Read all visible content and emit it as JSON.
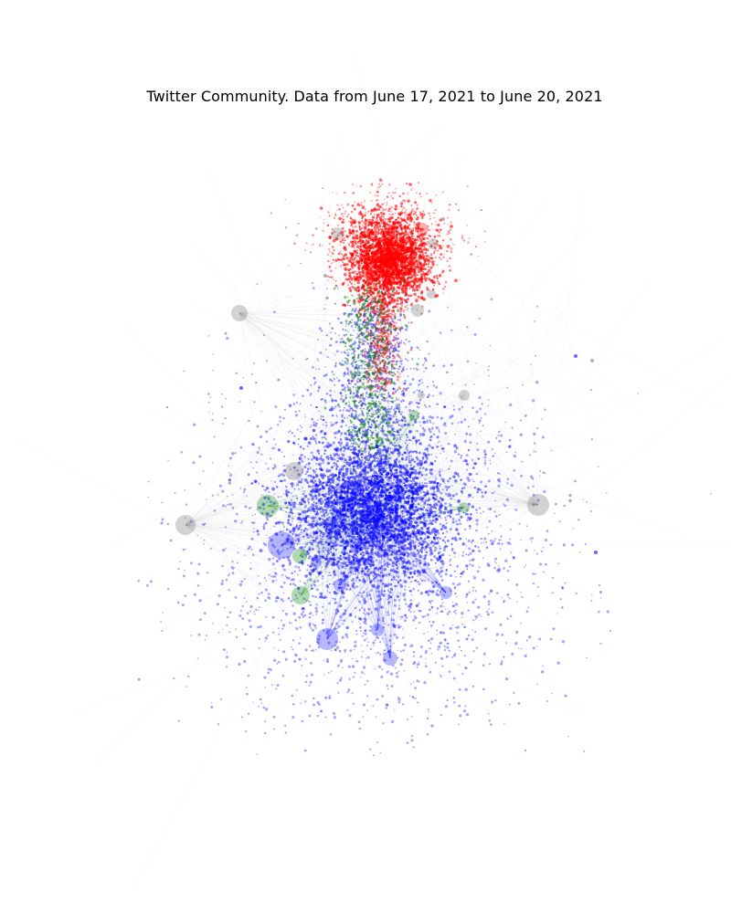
{
  "figure": {
    "title": "Twitter Community. Data from June 17, 2021 to June 20, 2021"
  },
  "palette": {
    "community_a": "#ff0000",
    "community_b": "#0000ff",
    "community_c": "#008000",
    "other": "#808080",
    "background": "#ffffff"
  }
}
